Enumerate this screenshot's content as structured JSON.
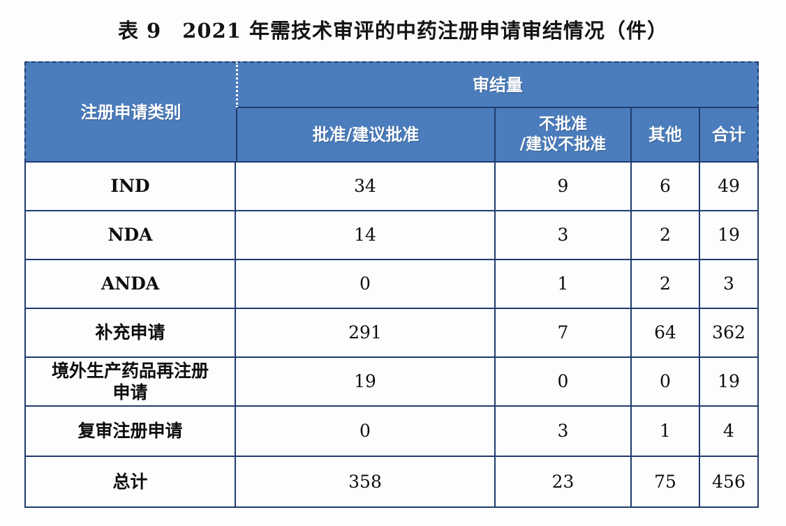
{
  "page": {
    "background": "#fdfdfd"
  },
  "title": "表 9　2021 年需技术审评的中药注册申请审结情况（件）",
  "table": {
    "colors": {
      "header_bg": "#4b7dbd",
      "border": "#1f3c6d",
      "body_bg": "#fcfdff",
      "header_text": "#ffffff",
      "body_text": "#0d0d0d"
    },
    "header": {
      "category_label": "注册申请类别",
      "group_label": "审结量",
      "columns": [
        "批准/建议批准",
        "不批准\n/建议不批准",
        "其他",
        "合计"
      ]
    },
    "rows": [
      {
        "label": "IND",
        "values": [
          "34",
          "9",
          "6",
          "49"
        ]
      },
      {
        "label": "NDA",
        "values": [
          "14",
          "3",
          "2",
          "19"
        ]
      },
      {
        "label": "ANDA",
        "values": [
          "0",
          "1",
          "2",
          "3"
        ]
      },
      {
        "label": "补充申请",
        "values": [
          "291",
          "7",
          "64",
          "362"
        ]
      },
      {
        "label": "境外生产药品再注册\n申请",
        "values": [
          "19",
          "0",
          "0",
          "19"
        ]
      },
      {
        "label": "复审注册申请",
        "values": [
          "0",
          "3",
          "1",
          "4"
        ]
      },
      {
        "label": "总计",
        "values": [
          "358",
          "23",
          "75",
          "456"
        ]
      }
    ]
  },
  "chart_data": {
    "type": "table",
    "title": "表 9　2021 年需技术审评的中药注册申请审结情况（件）",
    "columns": [
      "注册申请类别",
      "批准/建议批准",
      "不批准/建议不批准",
      "其他",
      "合计"
    ],
    "rows": [
      [
        "IND",
        34,
        9,
        6,
        49
      ],
      [
        "NDA",
        14,
        3,
        2,
        19
      ],
      [
        "ANDA",
        0,
        1,
        2,
        3
      ],
      [
        "补充申请",
        291,
        7,
        64,
        362
      ],
      [
        "境外生产药品再注册申请",
        19,
        0,
        0,
        19
      ],
      [
        "复审注册申请",
        0,
        3,
        1,
        4
      ],
      [
        "总计",
        358,
        23,
        75,
        456
      ]
    ]
  }
}
